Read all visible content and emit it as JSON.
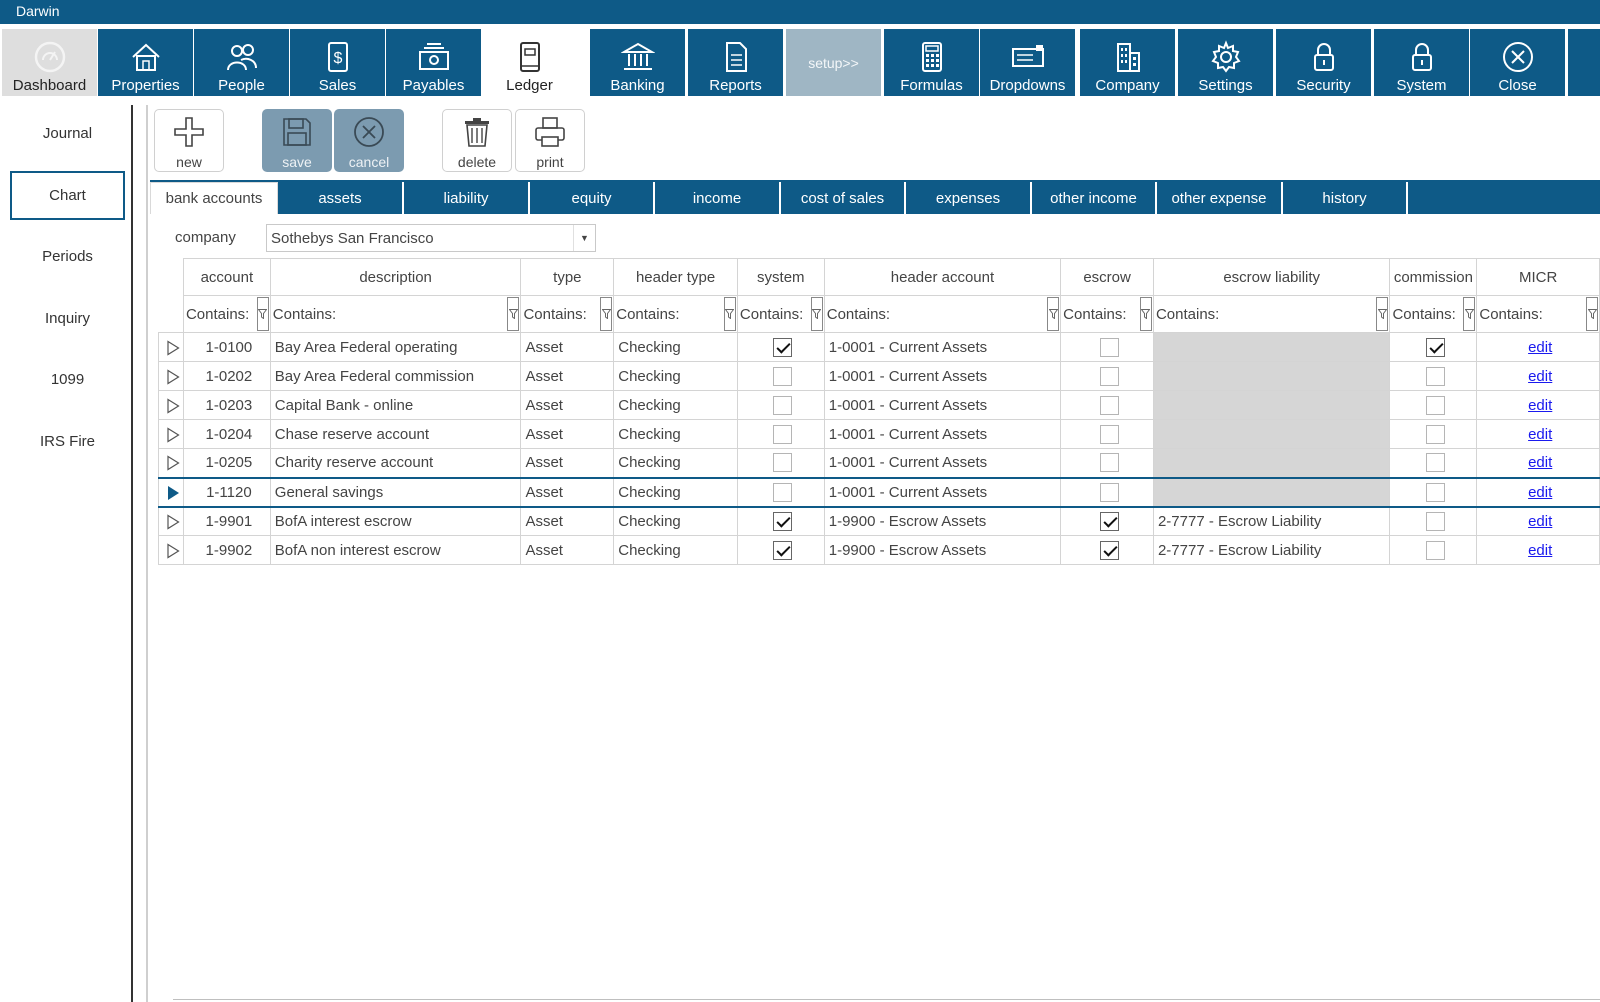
{
  "app": {
    "title": "Darwin"
  },
  "nav": [
    {
      "label": "Dashboard",
      "icon": "dashboard-gauge-icon"
    },
    {
      "label": "Properties",
      "icon": "house-icon"
    },
    {
      "label": "People",
      "icon": "people-icon"
    },
    {
      "label": "Sales",
      "icon": "dollar-document-icon"
    },
    {
      "label": "Payables",
      "icon": "money-icon"
    },
    {
      "label": "Ledger",
      "icon": "ledger-book-icon"
    },
    {
      "label": "Banking",
      "icon": "bank-icon"
    },
    {
      "label": "Reports",
      "icon": "report-icon"
    },
    {
      "label": "setup>>",
      "icon": ""
    },
    {
      "label": "Formulas",
      "icon": "calculator-icon"
    },
    {
      "label": "Dropdowns",
      "icon": "dropdown-icon"
    },
    {
      "label": "Company",
      "icon": "building-icon"
    },
    {
      "label": "Settings",
      "icon": "gear-icon"
    },
    {
      "label": "Security",
      "icon": "lock-icon"
    },
    {
      "label": "System",
      "icon": "lock-icon"
    },
    {
      "label": "Close",
      "icon": "close-circle-icon"
    }
  ],
  "sidebar": {
    "items": [
      {
        "label": "Journal"
      },
      {
        "label": "Chart"
      },
      {
        "label": "Periods"
      },
      {
        "label": "Inquiry"
      },
      {
        "label": "1099"
      },
      {
        "label": "IRS Fire"
      }
    ],
    "active": "Chart"
  },
  "toolbar": {
    "new_label": "new",
    "save_label": "save",
    "cancel_label": "cancel",
    "delete_label": "delete",
    "print_label": "print"
  },
  "tabs": [
    {
      "label": "bank accounts"
    },
    {
      "label": "assets"
    },
    {
      "label": "liability"
    },
    {
      "label": "equity"
    },
    {
      "label": "income"
    },
    {
      "label": "cost of sales"
    },
    {
      "label": "expenses"
    },
    {
      "label": "other income"
    },
    {
      "label": "other expense"
    },
    {
      "label": "history"
    }
  ],
  "company": {
    "label": "company",
    "value": "Sothebys San Francisco"
  },
  "grid": {
    "columns": [
      "account",
      "description",
      "type",
      "header type",
      "system",
      "header account",
      "escrow",
      "escrow liability",
      "commission",
      "MICR"
    ],
    "filter_text": "Contains:",
    "edit_label": "edit",
    "rows": [
      {
        "account": "1-0100",
        "description": "Bay Area Federal operating",
        "type": "Asset",
        "header_type": "Checking",
        "system": true,
        "header_account": "1-0001 - Current Assets",
        "escrow": false,
        "escrow_liability": "",
        "commission": true,
        "selected": false
      },
      {
        "account": "1-0202",
        "description": "Bay Area Federal commission",
        "type": "Asset",
        "header_type": "Checking",
        "system": false,
        "header_account": "1-0001 - Current Assets",
        "escrow": false,
        "escrow_liability": "",
        "commission": false,
        "selected": false
      },
      {
        "account": "1-0203",
        "description": "Capital Bank - online",
        "type": "Asset",
        "header_type": "Checking",
        "system": false,
        "header_account": "1-0001 - Current Assets",
        "escrow": false,
        "escrow_liability": "",
        "commission": false,
        "selected": false
      },
      {
        "account": "1-0204",
        "description": "Chase reserve account",
        "type": "Asset",
        "header_type": "Checking",
        "system": false,
        "header_account": "1-0001 - Current Assets",
        "escrow": false,
        "escrow_liability": "",
        "commission": false,
        "selected": false
      },
      {
        "account": "1-0205",
        "description": "Charity reserve account",
        "type": "Asset",
        "header_type": "Checking",
        "system": false,
        "header_account": "1-0001 - Current Assets",
        "escrow": false,
        "escrow_liability": "",
        "commission": false,
        "selected": false
      },
      {
        "account": "1-1120",
        "description": "General savings",
        "type": "Asset",
        "header_type": "Checking",
        "system": false,
        "header_account": "1-0001 - Current Assets",
        "escrow": false,
        "escrow_liability": "",
        "commission": false,
        "selected": true
      },
      {
        "account": "1-9901",
        "description": "BofA interest escrow",
        "type": "Asset",
        "header_type": "Checking",
        "system": true,
        "header_account": "1-9900 - Escrow Assets",
        "escrow": true,
        "escrow_liability": "2-7777 - Escrow Liability",
        "commission": false,
        "selected": false
      },
      {
        "account": "1-9902",
        "description": "BofA non interest escrow",
        "type": "Asset",
        "header_type": "Checking",
        "system": true,
        "header_account": "1-9900 - Escrow Assets",
        "escrow": true,
        "escrow_liability": "2-7777 - Escrow Liability",
        "commission": false,
        "selected": false
      }
    ]
  },
  "colors": {
    "brand": "#0e5a87",
    "setup": "#9fb6c4",
    "disabled_tool": "#7c9bb0"
  }
}
